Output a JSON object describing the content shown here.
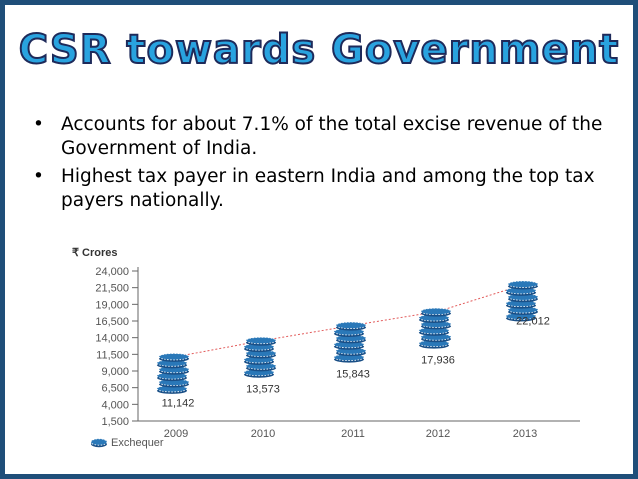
{
  "slide": {
    "title": "CSR towards Government",
    "bullets": [
      "Accounts for about 7.1% of the total excise revenue of the Government of India.",
      "Highest tax payer in eastern India and among the top tax payers nationally."
    ],
    "bullet_glyph": "•"
  },
  "chart_data": {
    "type": "bar",
    "title": "",
    "ylabel": "₹ Crores",
    "xlabel": "",
    "categories": [
      "2009",
      "2010",
      "2011",
      "2012",
      "2013"
    ],
    "values": [
      11142,
      13573,
      15843,
      17936,
      22012
    ],
    "value_labels": [
      "11,142",
      "13,573",
      "15,843",
      "17,936",
      "22,012"
    ],
    "yticks": [
      1500,
      4000,
      6500,
      9000,
      11500,
      14000,
      16500,
      19000,
      21500,
      24000
    ],
    "ytick_labels": [
      "1,500",
      "4,000",
      "6,500",
      "9,000",
      "11,500",
      "14,000",
      "16,500",
      "19,000",
      "21,500",
      "24,000"
    ],
    "ylim": [
      1500,
      24000
    ],
    "legend": [
      {
        "name": "Exchequer",
        "color": "#2a78b8"
      }
    ],
    "colors": {
      "coin": "#2a78b8",
      "coin_dark": "#1a4f86",
      "trend": "#e25c5c",
      "axis": "#666666"
    }
  }
}
